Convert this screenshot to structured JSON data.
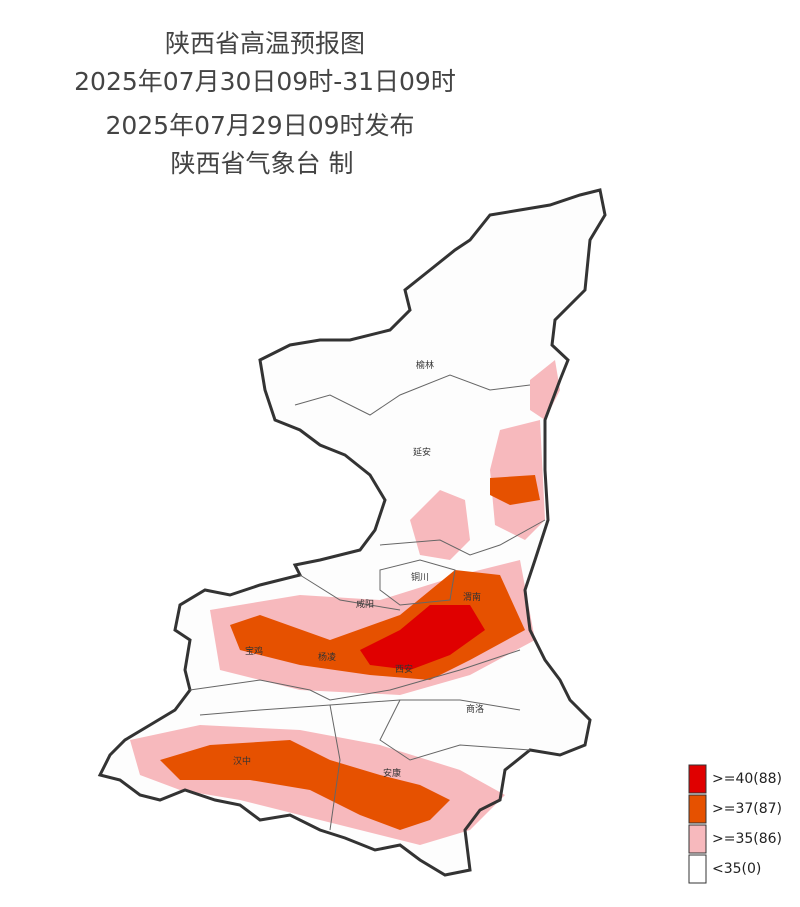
{
  "header": {
    "lines": [
      "陕西省高温预报图",
      "2025年07月30日09时-31日09时",
      "2025年07月29日09时发布",
      "陕西省气象台 制"
    ]
  },
  "cities": [
    "榆林",
    "延安",
    "铜川",
    "咸阳",
    "渭南",
    "宝鸡",
    "杨凌",
    "西安",
    "商洛",
    "汉中",
    "安康"
  ],
  "legend": [
    {
      "label": ">=40(88)",
      "color": "#e00000"
    },
    {
      "label": ">=37(87)",
      "color": "#e65100"
    },
    {
      "label": ">=35(86)",
      "color": "#f7b9bd"
    },
    {
      "label": "<35(0)",
      "color": "#ffffff"
    }
  ]
}
